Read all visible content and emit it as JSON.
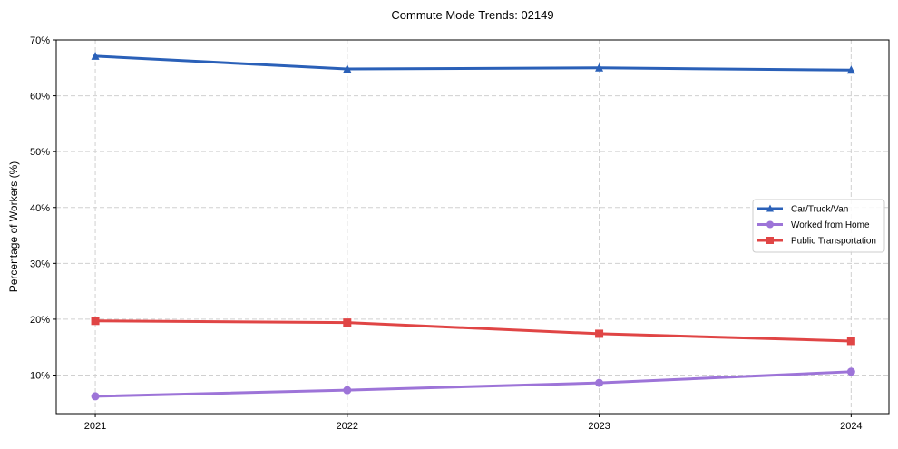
{
  "chart_data": {
    "type": "line",
    "title": "Commute Mode Trends: 02149",
    "xlabel": "",
    "ylabel": "Percentage of Workers (%)",
    "x": [
      2021,
      2022,
      2023,
      2024
    ],
    "x_tick_labels": [
      "2021",
      "2022",
      "2023",
      "2024"
    ],
    "xlim": [
      2020.845,
      2024.15
    ],
    "ylim": [
      3.1,
      70
    ],
    "y_ticks": [
      10,
      20,
      30,
      40,
      50,
      60,
      70
    ],
    "y_tick_labels": [
      "10%",
      "20%",
      "30%",
      "40%",
      "50%",
      "60%",
      "70%"
    ],
    "grid": true,
    "legend_position": "center-right",
    "series": [
      {
        "name": "Car/Truck/Van",
        "values": [
          67.1,
          64.8,
          65.0,
          64.6
        ],
        "color": "#2a60b8",
        "marker": "triangle"
      },
      {
        "name": "Worked from Home",
        "values": [
          6.2,
          7.3,
          8.6,
          10.6
        ],
        "color": "#9d74d8",
        "marker": "circle"
      },
      {
        "name": "Public Transportation",
        "values": [
          19.7,
          19.4,
          17.4,
          16.1
        ],
        "color": "#e04545",
        "marker": "square"
      }
    ]
  }
}
